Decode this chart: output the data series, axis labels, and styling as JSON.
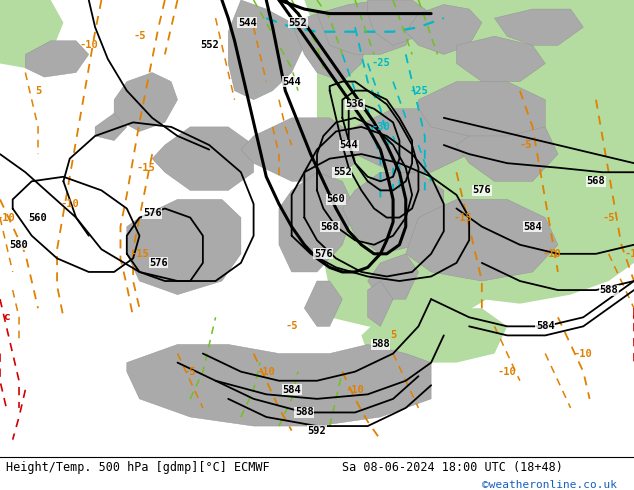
{
  "title_left": "Height/Temp. 500 hPa [gdmp][°C] ECMWF",
  "title_right": "Sa 08-06-2024 18:00 UTC (18+48)",
  "credit": "©weatheronline.co.uk",
  "bg_gray": "#c8c8c8",
  "bg_green": "#b4dba0",
  "land_gray": "#aaaaaa",
  "black": "#000000",
  "orange": "#e08000",
  "cyan": "#00b8c8",
  "lime": "#70c020",
  "red": "#d00000"
}
